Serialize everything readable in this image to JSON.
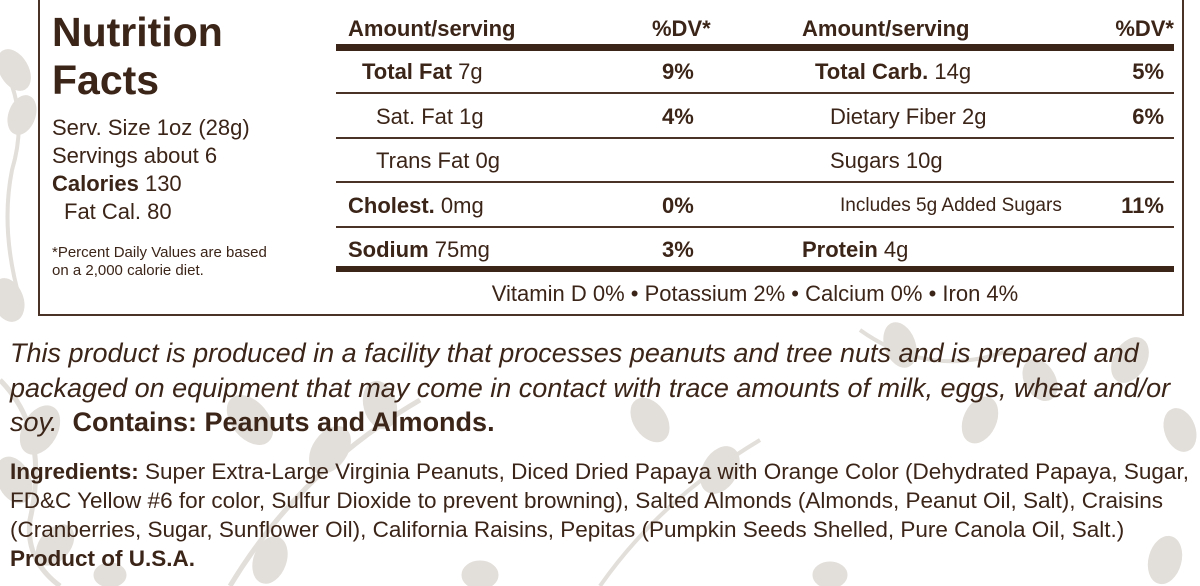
{
  "panel": {
    "title": "Nutrition Facts",
    "serving_size": "Serv. Size 1oz (28g)",
    "servings": "Servings about 6",
    "calories_label": "Calories",
    "calories_value": "130",
    "fat_cal": "Fat Cal. 80",
    "footnote_line1": "*Percent Daily Values are based",
    "footnote_line2": "on a 2,000 calorie diet.",
    "header_amount": "Amount/serving",
    "header_dv": "%DV*",
    "left_rows": [
      {
        "label": "Total Fat",
        "amount": "7g",
        "dv": "9%"
      },
      {
        "label": "Sat. Fat",
        "amount": "1g",
        "dv": "4%"
      },
      {
        "label": "Trans Fat",
        "amount": "0g",
        "dv": ""
      },
      {
        "label": "Cholest.",
        "amount": "0mg",
        "dv": "0%"
      },
      {
        "label": "Sodium",
        "amount": "75mg",
        "dv": "3%"
      }
    ],
    "right_rows": [
      {
        "label": "Total Carb.",
        "amount": "14g",
        "dv": "5%"
      },
      {
        "label": "Dietary Fiber",
        "amount": "2g",
        "dv": "6%"
      },
      {
        "label": "Sugars",
        "amount": "10g",
        "dv": ""
      },
      {
        "label": "Includes 5g Added Sugars",
        "amount": "",
        "dv": "11%"
      },
      {
        "label": "Protein",
        "amount": "4g",
        "dv": ""
      }
    ],
    "vitamins": "Vitamin D 0% • Potassium 2% • Calcium 0% • Iron 4%"
  },
  "allergen": {
    "statement": "This product is produced in a facility that processes peanuts and tree nuts and is prepared and packaged on equipment that may come in contact with trace amounts of milk, eggs, wheat and/or soy.",
    "contains": "Contains: Peanuts and Almonds."
  },
  "ingredients": {
    "label": "Ingredients:",
    "text": "Super Extra-Large Virginia Peanuts, Diced Dried Papaya with Orange Color (Dehydrated Papaya, Sugar, FD&C Yellow #6 for color, Sulfur Dioxide to prevent browning), Salted Almonds (Almonds, Peanut Oil, Salt), Craisins (Cranberries, Sugar, Sunflower Oil), California Raisins, Pepitas (Pumpkin Seeds Shelled, Pure Canola Oil, Salt.)",
    "origin": "Product of U.S.A."
  },
  "colors": {
    "text": "#3b2418",
    "rule": "#3b2418",
    "leaf": "#ddd9d4",
    "background": "#ffffff"
  },
  "icons": [
    "leaf-pattern"
  ]
}
